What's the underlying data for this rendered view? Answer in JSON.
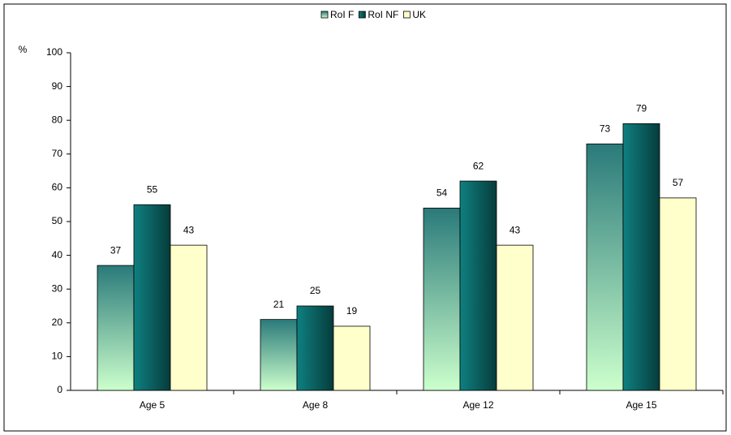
{
  "chart_data": {
    "type": "bar",
    "y_label": "%",
    "categories": [
      "Age 5",
      "Age 8",
      "Age 12",
      "Age 15"
    ],
    "series": [
      {
        "name": "RoI F",
        "color": "#2a7a7a",
        "color_end": "#ccffcc",
        "values": [
          37,
          21,
          54,
          73
        ]
      },
      {
        "name": "RoI NF",
        "color": "#0f8080",
        "color_end": "#063c3c",
        "values": [
          55,
          25,
          62,
          79
        ]
      },
      {
        "name": "UK",
        "color": "#ffffcc",
        "values": [
          43,
          19,
          43,
          57
        ]
      }
    ],
    "ylim": [
      0,
      100
    ],
    "yticks": [
      0,
      10,
      20,
      30,
      40,
      50,
      60,
      70,
      80,
      90,
      100
    ],
    "legend": "top",
    "data_labels": true
  }
}
